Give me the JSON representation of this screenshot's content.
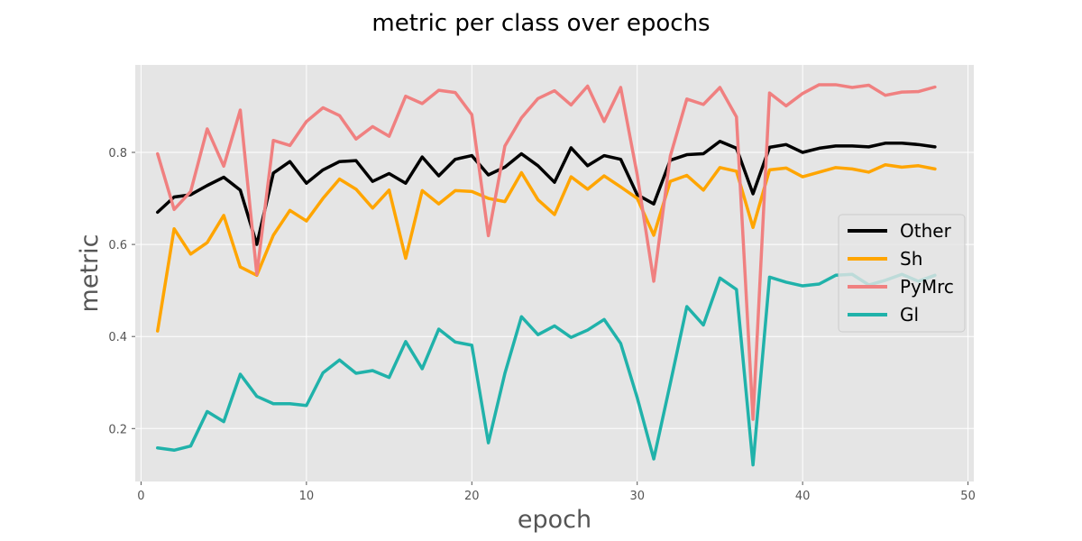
{
  "chart_data": {
    "type": "line",
    "title": "metric per class over epochs",
    "xlabel": "epoch",
    "ylabel": "metric",
    "xlim": [
      -0.35,
      50.35
    ],
    "ylim": [
      0.085,
      0.99
    ],
    "xticks": [
      0,
      10,
      20,
      30,
      40,
      50
    ],
    "yticks": [
      0.2,
      0.4,
      0.6,
      0.8
    ],
    "grid": true,
    "legend_position": "center-right",
    "x": [
      1,
      2,
      3,
      4,
      5,
      6,
      7,
      8,
      9,
      10,
      11,
      12,
      13,
      14,
      15,
      16,
      17,
      18,
      19,
      20,
      21,
      22,
      23,
      24,
      25,
      26,
      27,
      28,
      29,
      30,
      31,
      32,
      33,
      34,
      35,
      36,
      37,
      38,
      39,
      40,
      41,
      42,
      43,
      44,
      45,
      46,
      47,
      48
    ],
    "series": [
      {
        "name": "Other",
        "color": "#000000",
        "values": [
          0.67,
          0.703,
          0.708,
          0.728,
          0.746,
          0.718,
          0.6,
          0.755,
          0.78,
          0.733,
          0.762,
          0.78,
          0.782,
          0.737,
          0.754,
          0.733,
          0.79,
          0.749,
          0.785,
          0.793,
          0.751,
          0.768,
          0.797,
          0.771,
          0.735,
          0.81,
          0.771,
          0.793,
          0.785,
          0.708,
          0.688,
          0.783,
          0.795,
          0.797,
          0.824,
          0.809,
          0.71,
          0.811,
          0.817,
          0.8,
          0.809,
          0.814,
          0.814,
          0.812,
          0.82,
          0.82,
          0.817,
          0.812
        ]
      },
      {
        "name": "Sh",
        "color": "#FFA500",
        "values": [
          0.412,
          0.634,
          0.579,
          0.604,
          0.663,
          0.551,
          0.533,
          0.62,
          0.674,
          0.651,
          0.7,
          0.742,
          0.72,
          0.679,
          0.718,
          0.57,
          0.717,
          0.688,
          0.717,
          0.715,
          0.7,
          0.693,
          0.756,
          0.697,
          0.665,
          0.747,
          0.72,
          0.749,
          0.725,
          0.7,
          0.62,
          0.737,
          0.75,
          0.718,
          0.767,
          0.759,
          0.637,
          0.762,
          0.766,
          0.747,
          0.757,
          0.767,
          0.764,
          0.757,
          0.773,
          0.768,
          0.771,
          0.764
        ]
      },
      {
        "name": "PyMrc",
        "color": "#F08080",
        "values": [
          0.797,
          0.676,
          0.715,
          0.851,
          0.77,
          0.892,
          0.535,
          0.826,
          0.815,
          0.867,
          0.897,
          0.88,
          0.829,
          0.856,
          0.835,
          0.922,
          0.906,
          0.935,
          0.93,
          0.882,
          0.619,
          0.814,
          0.875,
          0.917,
          0.934,
          0.903,
          0.944,
          0.867,
          0.941,
          0.751,
          0.52,
          0.792,
          0.916,
          0.904,
          0.941,
          0.877,
          0.22,
          0.929,
          0.901,
          0.928,
          0.947,
          0.947,
          0.941,
          0.946,
          0.924,
          0.931,
          0.932,
          0.942
        ]
      },
      {
        "name": "Gl",
        "color": "#20B2AA",
        "values": [
          0.158,
          0.153,
          0.162,
          0.237,
          0.215,
          0.318,
          0.27,
          0.254,
          0.254,
          0.25,
          0.321,
          0.349,
          0.32,
          0.326,
          0.311,
          0.389,
          0.33,
          0.416,
          0.388,
          0.381,
          0.169,
          0.32,
          0.443,
          0.404,
          0.423,
          0.398,
          0.414,
          0.437,
          0.385,
          0.267,
          0.134,
          0.298,
          0.465,
          0.425,
          0.527,
          0.502,
          0.121,
          0.529,
          0.518,
          0.51,
          0.514,
          0.533,
          0.535,
          0.512,
          0.522,
          0.535,
          0.52,
          0.533
        ]
      }
    ]
  }
}
